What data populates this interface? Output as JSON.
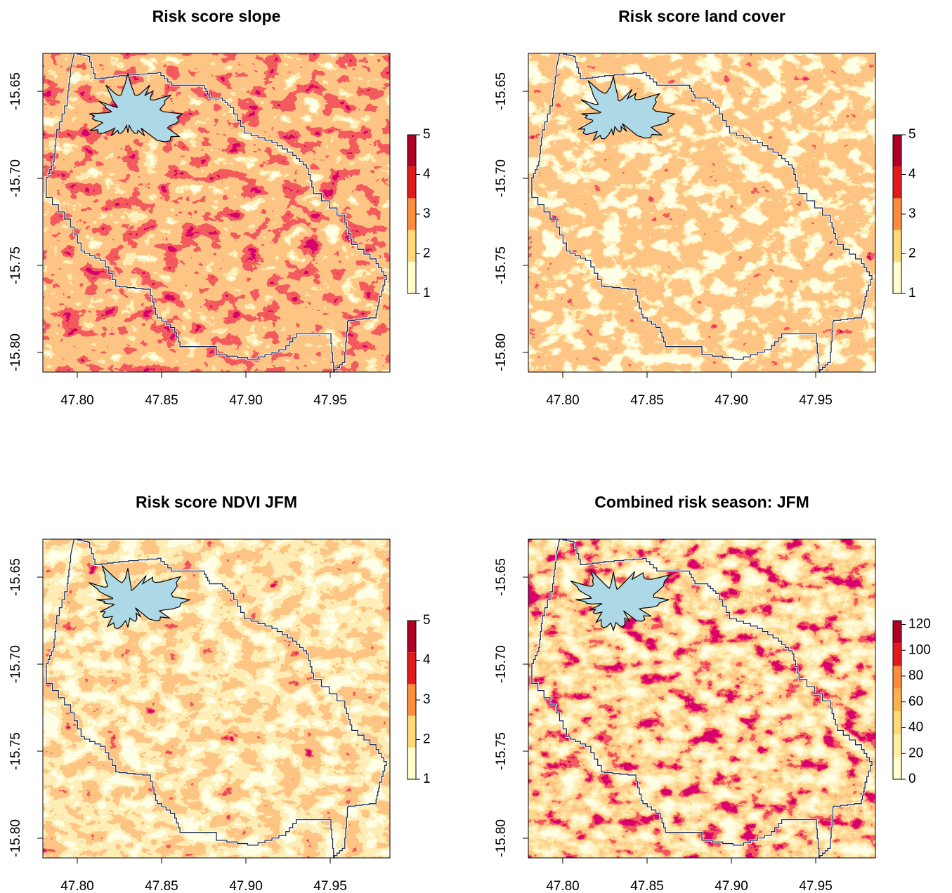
{
  "maps": [
    {
      "title": "Risk score slope",
      "xlim": [
        47.7796,
        47.9854
      ],
      "ylim": [
        -15.8113,
        -15.6282
      ],
      "xticks": [
        {
          "value": 47.8,
          "label": "47.80"
        },
        {
          "value": 47.85,
          "label": "47.85"
        },
        {
          "value": 47.9,
          "label": "47.90"
        },
        {
          "value": 47.95,
          "label": "47.95"
        }
      ],
      "yticks": [
        {
          "value": -15.65,
          "label": "-15.65"
        },
        {
          "value": -15.7,
          "label": "-15.70"
        },
        {
          "value": -15.75,
          "label": "-15.75"
        },
        {
          "value": -15.8,
          "label": "-15.80"
        }
      ],
      "legend": {
        "zlim": [
          1,
          5
        ],
        "ticks": [
          1,
          2,
          3,
          4,
          5
        ],
        "colors": [
          "#ffffcc",
          "#fed976",
          "#fd8d3c",
          "#e31a1c",
          "#b10026"
        ]
      }
    },
    {
      "title": "Risk score land cover",
      "xlim": [
        47.7796,
        47.9854
      ],
      "ylim": [
        -15.8113,
        -15.6282
      ],
      "xticks": [
        {
          "value": 47.8,
          "label": "47.80"
        },
        {
          "value": 47.85,
          "label": "47.85"
        },
        {
          "value": 47.9,
          "label": "47.90"
        },
        {
          "value": 47.95,
          "label": "47.95"
        }
      ],
      "yticks": [
        {
          "value": -15.65,
          "label": "-15.65"
        },
        {
          "value": -15.7,
          "label": "-15.70"
        },
        {
          "value": -15.75,
          "label": "-15.75"
        },
        {
          "value": -15.8,
          "label": "-15.80"
        }
      ],
      "legend": {
        "zlim": [
          1,
          5
        ],
        "ticks": [
          1,
          2,
          3,
          4,
          5
        ],
        "colors": [
          "#ffffcc",
          "#fed976",
          "#fd8d3c",
          "#e31a1c",
          "#b10026"
        ]
      }
    },
    {
      "title": "Risk score NDVI JFM",
      "xlim": [
        47.7796,
        47.9854
      ],
      "ylim": [
        -15.8113,
        -15.6282
      ],
      "xticks": [
        {
          "value": 47.8,
          "label": "47.80"
        },
        {
          "value": 47.85,
          "label": "47.85"
        },
        {
          "value": 47.9,
          "label": "47.90"
        },
        {
          "value": 47.95,
          "label": "47.95"
        }
      ],
      "yticks": [
        {
          "value": -15.65,
          "label": "-15.65"
        },
        {
          "value": -15.7,
          "label": "-15.70"
        },
        {
          "value": -15.75,
          "label": "-15.75"
        },
        {
          "value": -15.8,
          "label": "-15.80"
        }
      ],
      "legend": {
        "zlim": [
          1,
          5
        ],
        "ticks": [
          1,
          2,
          3,
          4,
          5
        ],
        "colors": [
          "#ffffcc",
          "#fed976",
          "#fd8d3c",
          "#e31a1c",
          "#b10026"
        ]
      }
    },
    {
      "title": "Combined risk season: JFM",
      "xlim": [
        47.7796,
        47.9854
      ],
      "ylim": [
        -15.8113,
        -15.6282
      ],
      "xticks": [
        {
          "value": 47.8,
          "label": "47.80"
        },
        {
          "value": 47.85,
          "label": "47.85"
        },
        {
          "value": 47.9,
          "label": "47.90"
        },
        {
          "value": 47.95,
          "label": "47.95"
        }
      ],
      "yticks": [
        {
          "value": -15.65,
          "label": "-15.65"
        },
        {
          "value": -15.7,
          "label": "-15.70"
        },
        {
          "value": -15.75,
          "label": "-15.75"
        },
        {
          "value": -15.8,
          "label": "-15.80"
        }
      ],
      "legend": {
        "zlim": [
          0,
          123
        ],
        "ticks": [
          0,
          20,
          40,
          60,
          80,
          100,
          120
        ],
        "colors": [
          "#ffffcc",
          "#ffeda0",
          "#fed976",
          "#feb24c",
          "#fd8d3c",
          "#e31a1c",
          "#b10026"
        ]
      }
    }
  ]
}
